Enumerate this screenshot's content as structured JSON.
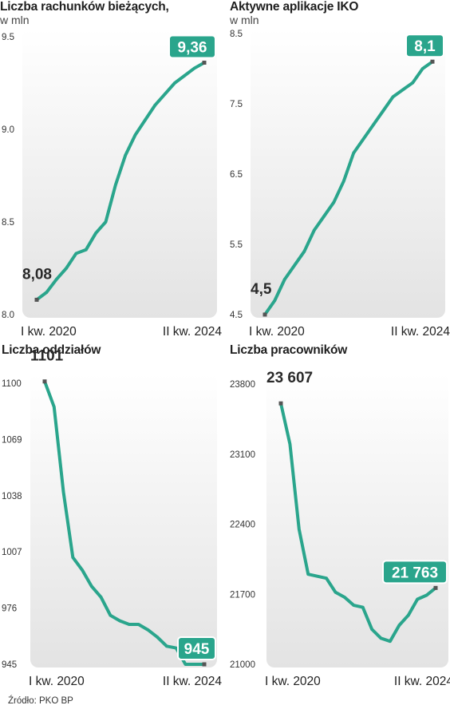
{
  "colors": {
    "line": "#2aa58c",
    "badge": "#2aa58c",
    "plot_bg_top": "#ffffff",
    "plot_bg_bottom": "#e3e3e3",
    "point": "#555555"
  },
  "source": "Źródło: PKO BP",
  "chart_data": [
    {
      "type": "line",
      "title": "Liczba rachunków bieżących,",
      "subtitle": "w mln",
      "ylim": [
        8.0,
        9.5
      ],
      "y_ticks": [
        "9.5",
        "9.0",
        "8.5",
        "8.0"
      ],
      "x_tick_labels": [
        "I kw. 2020",
        "II kw. 2024"
      ],
      "start_label": "8,08",
      "end_label": "9,36",
      "values": [
        8.08,
        8.12,
        8.19,
        8.25,
        8.33,
        8.35,
        8.44,
        8.5,
        8.7,
        8.86,
        8.97,
        9.05,
        9.13,
        9.19,
        9.25,
        9.29,
        9.33,
        9.36
      ]
    },
    {
      "type": "line",
      "title": "Aktywne aplikacje IKO",
      "subtitle": "w mln",
      "ylim": [
        4.5,
        8.5
      ],
      "y_ticks": [
        "8.5",
        "7.5",
        "6.5",
        "5.5",
        "4.5"
      ],
      "x_tick_labels": [
        "I kw. 2020",
        "II kw. 2024"
      ],
      "start_label": "4,5",
      "end_label": "8,1",
      "values": [
        4.5,
        4.7,
        5.0,
        5.2,
        5.4,
        5.7,
        5.9,
        6.1,
        6.4,
        6.8,
        7.0,
        7.2,
        7.4,
        7.6,
        7.7,
        7.8,
        8.0,
        8.1
      ]
    },
    {
      "type": "line",
      "title": "Liczba oddziałów",
      "subtitle": "",
      "ylim": [
        945,
        1100
      ],
      "y_ticks": [
        "1100",
        "1069",
        "1038",
        "1007",
        "976",
        "945"
      ],
      "x_tick_labels": [
        "I kw. 2020",
        "II kw. 2024"
      ],
      "start_label": "1101",
      "end_label": "945",
      "values": [
        1101,
        1087,
        1040,
        1004,
        997,
        988,
        982,
        972,
        969,
        967,
        967,
        964,
        960,
        955,
        954,
        945,
        945,
        945
      ]
    },
    {
      "type": "line",
      "title": "Liczba pracowników",
      "subtitle": "",
      "ylim": [
        21000,
        23800
      ],
      "y_ticks": [
        "23800",
        "23100",
        "22400",
        "21700",
        "21000"
      ],
      "x_tick_labels": [
        "I kw. 2020",
        "II kw. 2024"
      ],
      "start_label": "23 607",
      "end_label": "21 763",
      "values": [
        23607,
        23200,
        22350,
        21900,
        21880,
        21860,
        21720,
        21670,
        21590,
        21570,
        21350,
        21260,
        21230,
        21390,
        21490,
        21650,
        21690,
        21763
      ]
    }
  ]
}
